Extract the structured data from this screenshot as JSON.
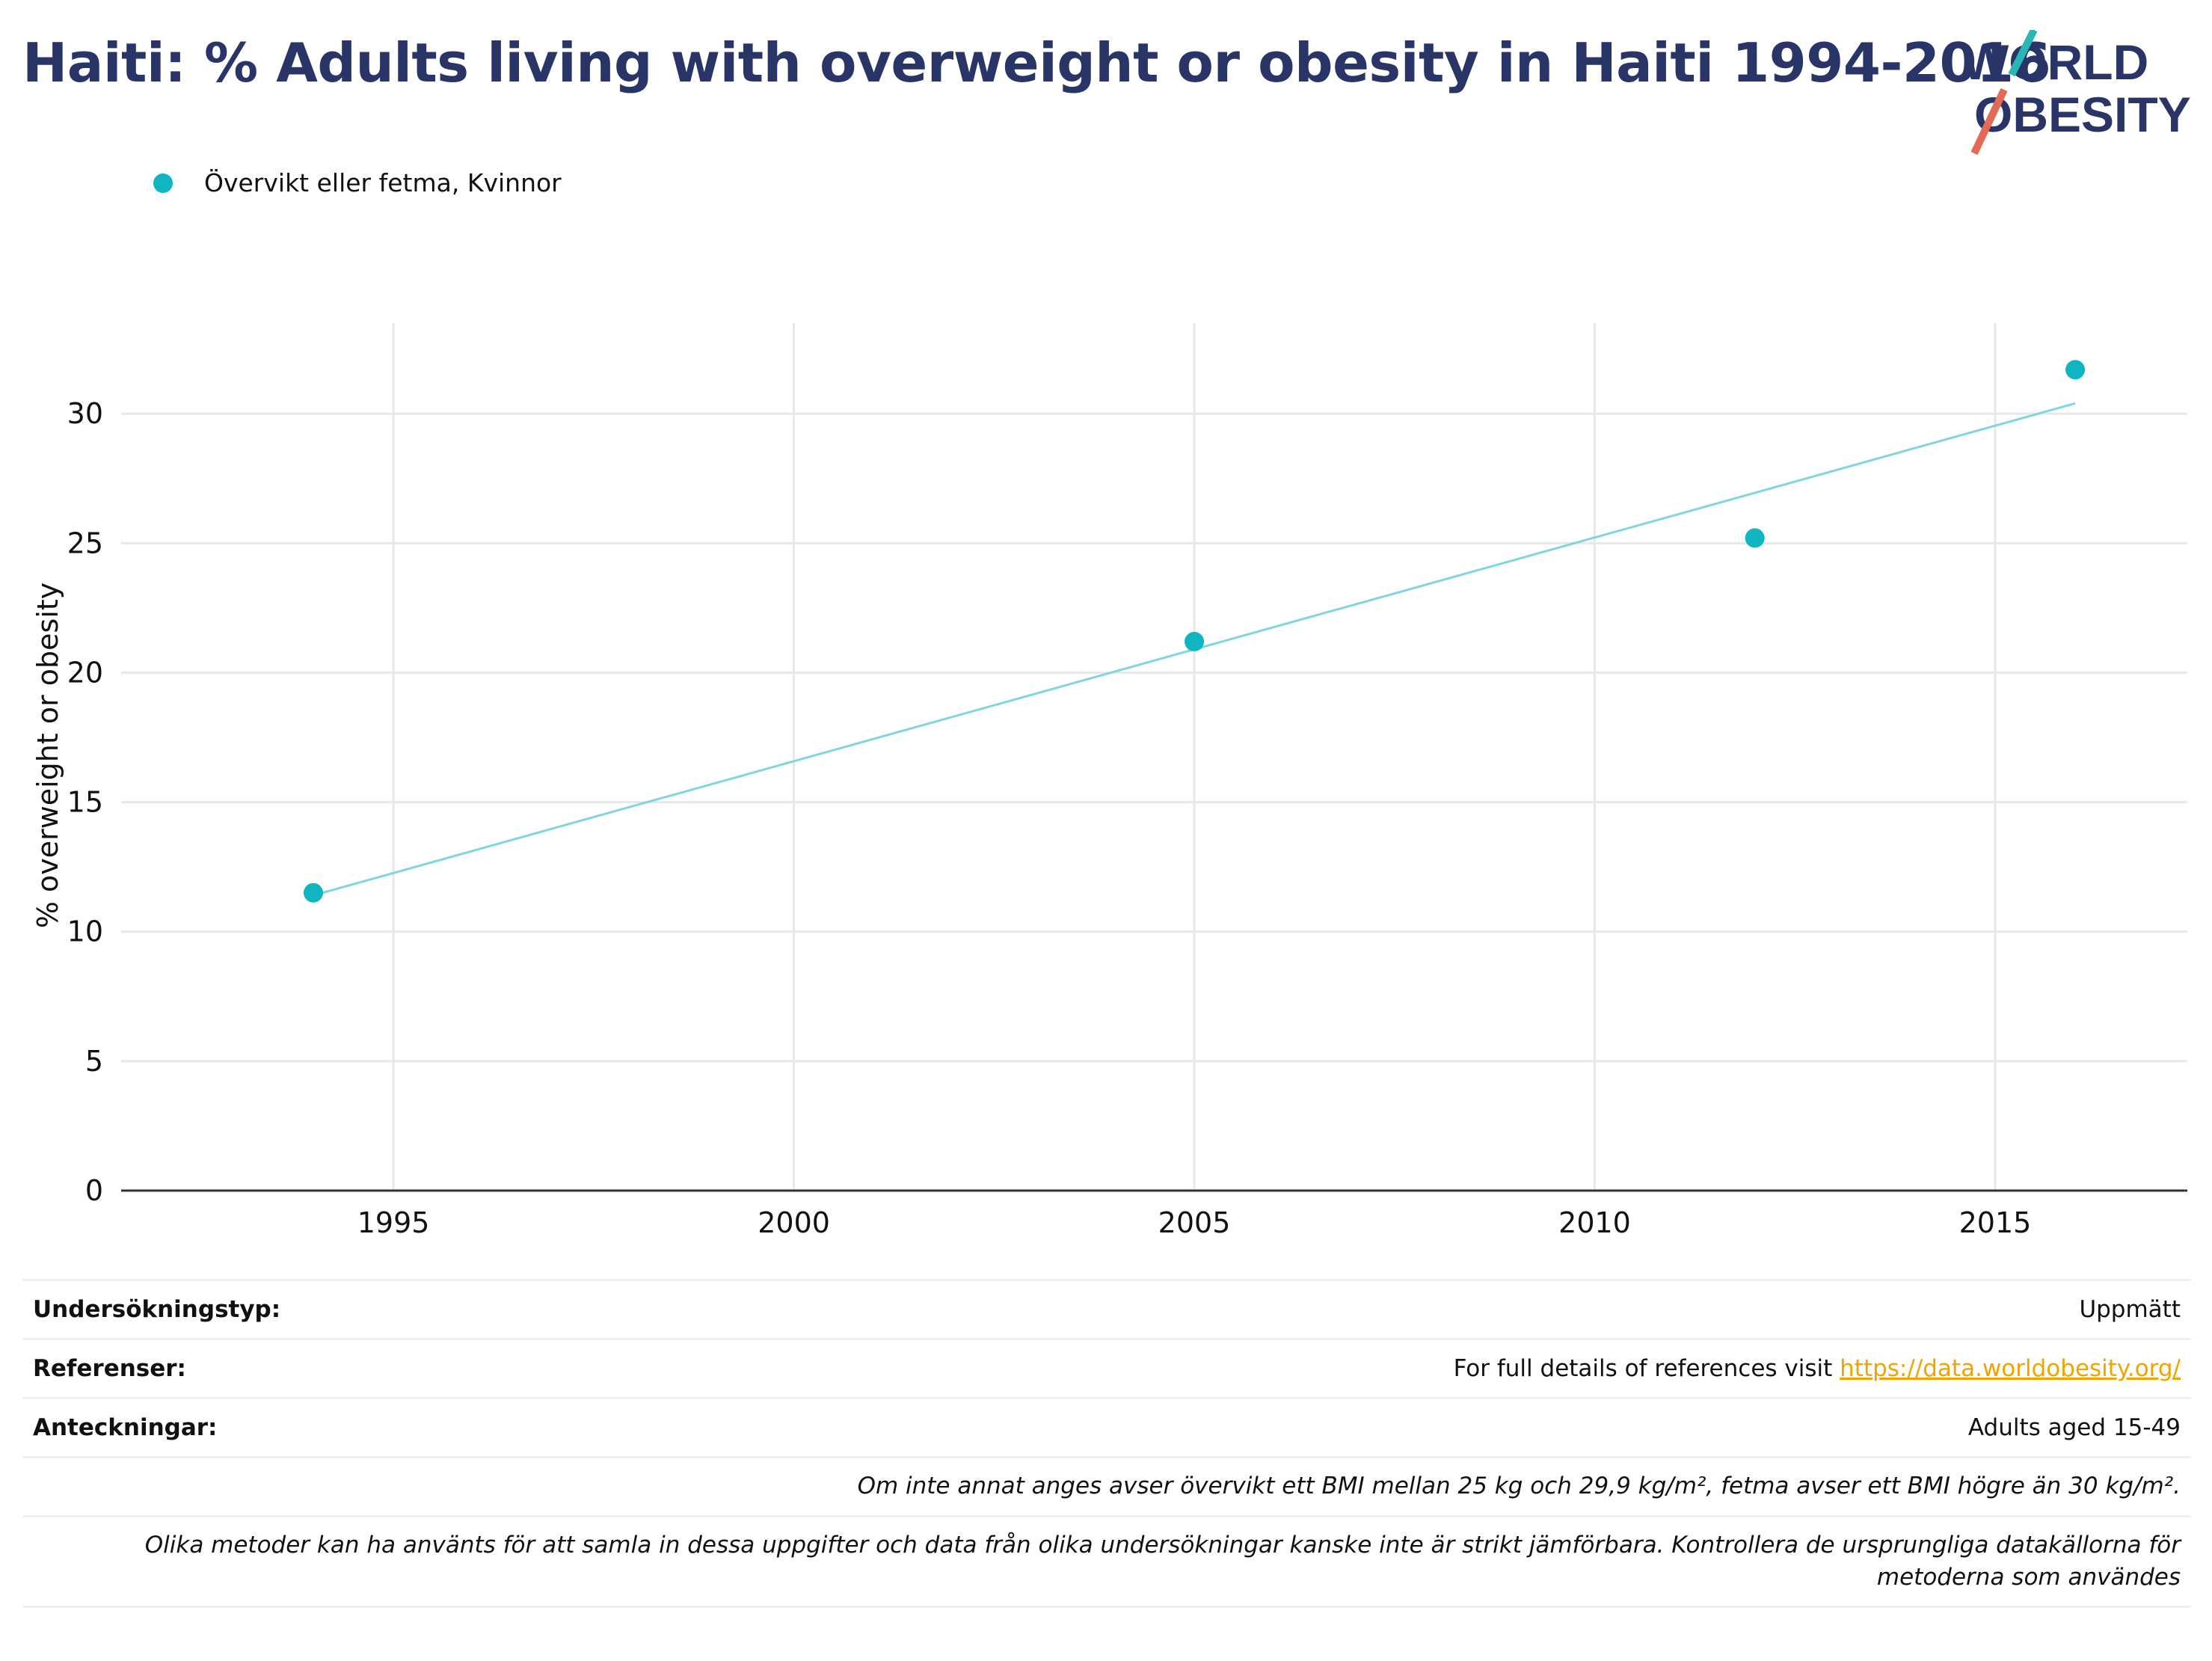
{
  "title": "Haiti: % Adults living with overweight or obesity in Haiti 1994-2016",
  "logo": {
    "line1": "WORLD",
    "line2": "OBESITY"
  },
  "legend": {
    "label": "Övervikt eller fetma, Kvinnor",
    "color": "#0fb5c0"
  },
  "chart_data": {
    "type": "scatter",
    "title": "Haiti: % Adults living with overweight or obesity in Haiti 1994-2016",
    "xlabel": "",
    "ylabel": "% overweight or obesity",
    "xlim": [
      1991.6,
      2017.4
    ],
    "ylim": [
      0,
      33.5
    ],
    "x_ticks": [
      1995,
      2000,
      2005,
      2010,
      2015
    ],
    "y_ticks": [
      0,
      5,
      10,
      15,
      20,
      25,
      30
    ],
    "grid": true,
    "series": [
      {
        "name": "Övervikt eller fetma, Kvinnor",
        "color": "#0fb5c0",
        "x": [
          1994,
          2005,
          2012,
          2016
        ],
        "y": [
          11.5,
          21.2,
          25.2,
          31.7
        ]
      }
    ],
    "trendline": {
      "color": "#7fd6dc",
      "x": [
        1994,
        2016
      ],
      "y": [
        11.4,
        30.4
      ]
    }
  },
  "info": {
    "survey_type_label": "Undersökningstyp:",
    "survey_type_value": "Uppmätt",
    "references_label": "Referenser:",
    "references_text": "For full details of references visit ",
    "references_link": "https://data.worldobesity.org/",
    "notes_label": "Anteckningar:",
    "notes_value": "Adults aged 15-49",
    "bmi_note": "Om inte annat anges avser övervikt ett BMI mellan 25 kg och 29,9 kg/m², fetma avser ett BMI högre än 30 kg/m².",
    "methods_note": "Olika metoder kan ha använts för att samla in dessa uppgifter och data från olika undersökningar kanske inte är strikt jämförbara. Kontrollera de ursprungliga datakällorna för metoderna som användes"
  }
}
